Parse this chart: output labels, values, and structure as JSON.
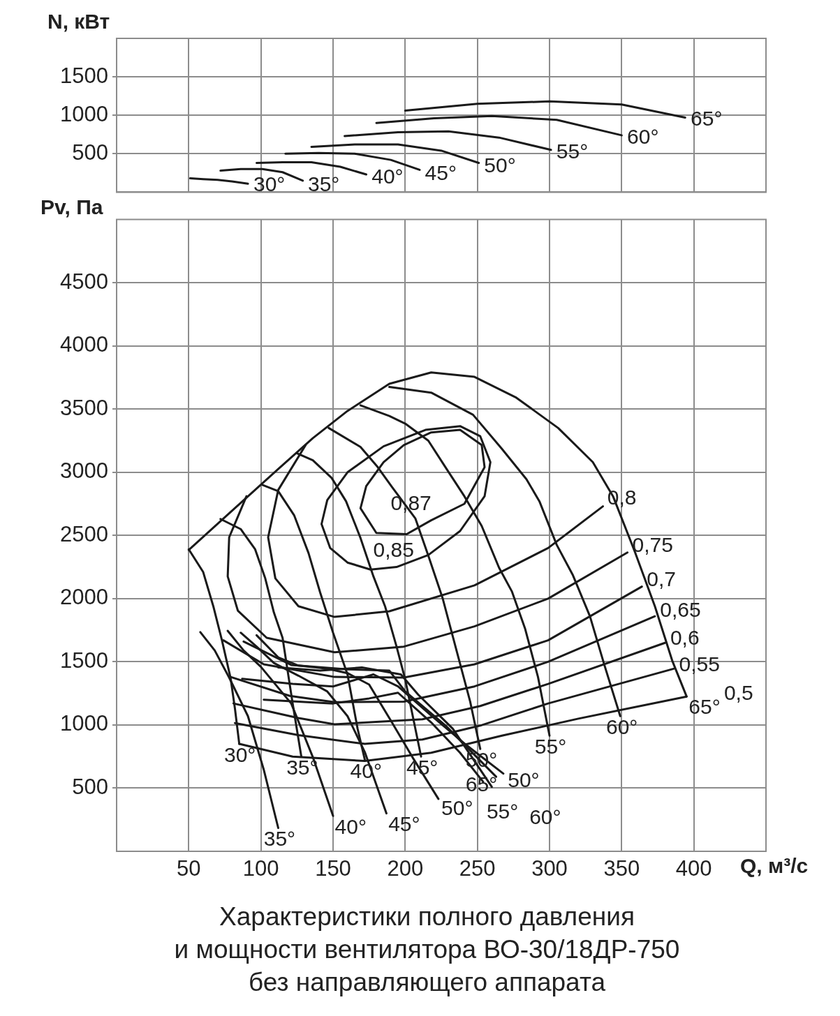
{
  "chart_data": [
    {
      "type": "line",
      "ylabel": "N, кВт",
      "xlim": [
        0,
        450
      ],
      "xticks": [
        50,
        100,
        150,
        200,
        250,
        300,
        350,
        400
      ],
      "ylim": [
        0,
        2000
      ],
      "yticks": [
        500,
        1000,
        1500
      ],
      "grid": true,
      "legend": false,
      "marker": "none",
      "tick_labels": "y",
      "series": [
        {
          "name": "30°",
          "color": "#1a1a1a",
          "x": [
            51,
            60,
            70,
            80,
            91
          ],
          "values": [
            180,
            170,
            160,
            140,
            110
          ]
        },
        {
          "name": "35°",
          "color": "#1a1a1a",
          "x": [
            72,
            86,
            101,
            115,
            129
          ],
          "values": [
            280,
            300,
            300,
            260,
            150
          ]
        },
        {
          "name": "40°",
          "color": "#1a1a1a",
          "x": [
            97,
            115,
            135,
            155,
            173
          ],
          "values": [
            380,
            390,
            390,
            330,
            230
          ]
        },
        {
          "name": "45°",
          "color": "#1a1a1a",
          "x": [
            117,
            140,
            165,
            190,
            210
          ],
          "values": [
            500,
            510,
            500,
            420,
            290
          ]
        },
        {
          "name": "50°",
          "color": "#1a1a1a",
          "x": [
            135,
            165,
            195,
            225,
            251
          ],
          "values": [
            590,
            620,
            620,
            540,
            380
          ]
        },
        {
          "name": "55°",
          "color": "#1a1a1a",
          "x": [
            158,
            195,
            230,
            265,
            301
          ],
          "values": [
            730,
            780,
            790,
            710,
            550
          ]
        },
        {
          "name": "60°",
          "color": "#1a1a1a",
          "x": [
            180,
            220,
            260,
            305,
            350
          ],
          "values": [
            900,
            960,
            990,
            940,
            740
          ]
        },
        {
          "name": "65°",
          "color": "#1a1a1a",
          "x": [
            200,
            250,
            300,
            350,
            394
          ],
          "values": [
            1060,
            1150,
            1180,
            1140,
            970
          ]
        }
      ]
    },
    {
      "type": "line",
      "ylabel": "Pv, Па",
      "xlabel": "Q, м³/с",
      "xlim": [
        0,
        450
      ],
      "xticks": [
        50,
        100,
        150,
        200,
        250,
        300,
        350,
        400
      ],
      "ylim": [
        0,
        5000
      ],
      "yticks": [
        500,
        1000,
        1500,
        2000,
        2500,
        3000,
        3500,
        4000,
        4500
      ],
      "grid": true,
      "legend": false,
      "marker": "none",
      "annotations": [
        "Характеристики полного давления\nи мощности вентилятора ВО-30/18ДР-750\nбез направляющего аппарата",
        "0,85",
        "0,87"
      ],
      "series": [
        {
          "name": "30°",
          "color": "#1a1a1a",
          "x": [
            50,
            60,
            67,
            73,
            79,
            82,
            85
          ],
          "values": [
            2390,
            2210,
            1940,
            1670,
            1370,
            1130,
            850
          ]
        },
        {
          "name": "35°",
          "color": "#1a1a1a",
          "x": [
            72,
            86,
            96,
            103,
            109,
            115,
            122,
            128
          ],
          "values": [
            2630,
            2550,
            2390,
            2160,
            1890,
            1690,
            1170,
            750
          ]
        },
        {
          "name": "40°",
          "color": "#1a1a1a",
          "x": [
            101,
            112,
            123,
            133,
            141,
            150,
            160,
            167,
            172
          ],
          "values": [
            2900,
            2850,
            2660,
            2360,
            2050,
            1730,
            1400,
            970,
            725
          ]
        },
        {
          "name": "45°",
          "color": "#1a1a1a",
          "x": [
            125,
            136,
            149,
            159,
            169,
            178,
            186,
            194,
            200,
            211
          ],
          "values": [
            3150,
            3095,
            2955,
            2770,
            2480,
            2175,
            1940,
            1620,
            1360,
            750
          ]
        },
        {
          "name": "50°",
          "color": "#1a1a1a",
          "x": [
            147,
            169,
            181,
            191,
            207,
            216,
            226,
            236,
            245,
            252
          ],
          "values": [
            3350,
            3200,
            3040,
            2880,
            2635,
            2340,
            2000,
            1570,
            1185,
            810
          ]
        },
        {
          "name": "55°",
          "color": "#1a1a1a",
          "x": [
            169,
            189,
            200,
            216,
            229,
            241,
            253,
            265,
            274,
            283,
            292,
            300
          ],
          "values": [
            3530,
            3445,
            3385,
            3250,
            3020,
            2810,
            2575,
            2245,
            2055,
            1765,
            1380,
            915
          ]
        },
        {
          "name": "60°",
          "color": "#1a1a1a",
          "x": [
            189,
            218,
            247,
            267,
            284,
            293,
            305,
            316,
            328,
            338,
            349
          ],
          "values": [
            3675,
            3630,
            3455,
            3185,
            2945,
            2770,
            2425,
            2190,
            1860,
            1475,
            1070
          ]
        },
        {
          "name": "65°",
          "color": "#1a1a1a",
          "x": [
            50,
            78,
            112,
            136,
            160,
            189,
            218,
            248,
            277,
            306,
            330,
            344,
            359,
            373,
            385,
            395
          ],
          "values": [
            2385,
            2675,
            3025,
            3270,
            3485,
            3700,
            3790,
            3755,
            3590,
            3350,
            3080,
            2810,
            2375,
            1940,
            1510,
            1225
          ]
        },
        {
          "name": "0,5",
          "color": "#1a1a1a",
          "x": [
            85,
            122,
            172,
            218,
            267,
            320,
            395
          ],
          "values": [
            850,
            750,
            715,
            780,
            915,
            1050,
            1225
          ]
        },
        {
          "name": "0,55",
          "color": "#1a1a1a",
          "x": [
            82,
            126,
            172,
            212,
            252,
            299,
            386
          ],
          "values": [
            1015,
            920,
            850,
            885,
            995,
            1170,
            1445
          ]
        },
        {
          "name": "0,6",
          "color": "#1a1a1a",
          "x": [
            81,
            126,
            151,
            212,
            252,
            299,
            380
          ],
          "values": [
            1170,
            1055,
            1005,
            1045,
            1150,
            1325,
            1650
          ]
        },
        {
          "name": "0,65",
          "color": "#1a1a1a",
          "x": [
            79,
            120,
            151,
            199,
            248,
            299,
            373
          ],
          "values": [
            1380,
            1230,
            1180,
            1185,
            1305,
            1500,
            1860
          ]
        },
        {
          "name": "0,7",
          "color": "#1a1a1a",
          "x": [
            74,
            102,
            151,
            199,
            248,
            299,
            364
          ],
          "values": [
            1670,
            1480,
            1380,
            1375,
            1480,
            1670,
            2095
          ]
        },
        {
          "name": "0,75",
          "color": "#1a1a1a",
          "x": [
            90,
            78,
            77,
            84,
            104,
            151,
            199,
            248,
            299,
            354
          ],
          "values": [
            2810,
            2485,
            2175,
            1905,
            1690,
            1575,
            1620,
            1780,
            2000,
            2365
          ]
        },
        {
          "name": "0,8",
          "color": "#1a1a1a",
          "x": [
            131,
            112,
            105,
            110,
            126,
            151,
            189,
            248,
            299,
            337
          ],
          "values": [
            3215,
            2860,
            2485,
            2160,
            1940,
            1855,
            1900,
            2105,
            2400,
            2730
          ]
        },
        {
          "name": "35°",
          "color": "#1a1a1a",
          "x": [
            58,
            68,
            78,
            91,
            102,
            112
          ],
          "values": [
            1735,
            1590,
            1375,
            1070,
            645,
            185
          ]
        },
        {
          "name": "40°",
          "color": "#1a1a1a",
          "x": [
            77,
            88,
            100,
            121,
            136,
            150
          ],
          "values": [
            1745,
            1590,
            1460,
            1170,
            745,
            280
          ]
        },
        {
          "name": "45°",
          "color": "#1a1a1a",
          "x": [
            86,
            97,
            109,
            126,
            146,
            160,
            172,
            187
          ],
          "values": [
            1730,
            1620,
            1490,
            1390,
            1265,
            1070,
            785,
            300
          ]
        },
        {
          "name": "50°",
          "color": "#1a1a1a",
          "x": [
            97,
            112,
            126,
            146,
            160,
            175,
            190,
            205,
            223
          ],
          "values": [
            1710,
            1535,
            1470,
            1445,
            1410,
            1320,
            1035,
            745,
            415
          ]
        },
        {
          "name": "50°",
          "color": "#1a1a1a",
          "x": [
            87,
            122,
            150,
            178,
            195,
            218,
            243,
            268
          ],
          "values": [
            1365,
            1325,
            1305,
            1400,
            1305,
            1075,
            835,
            615
          ]
        },
        {
          "name": "55°",
          "color": "#1a1a1a",
          "x": [
            102,
            126,
            150,
            175,
            195,
            218,
            238,
            254
          ],
          "values": [
            1200,
            1185,
            1170,
            1210,
            1255,
            1020,
            780,
            550
          ]
        },
        {
          "name": "60°",
          "color": "#1a1a1a",
          "x": [
            112,
            141,
            170,
            197,
            209,
            233,
            260
          ],
          "values": [
            1455,
            1430,
            1455,
            1400,
            1240,
            970,
            510
          ]
        },
        {
          "name": "65°",
          "color": "#1a1a1a",
          "x": [
            88,
            121,
            160,
            189,
            200,
            228,
            263
          ],
          "values": [
            1660,
            1475,
            1440,
            1430,
            1265,
            995,
            590
          ]
        }
      ]
    }
  ]
}
